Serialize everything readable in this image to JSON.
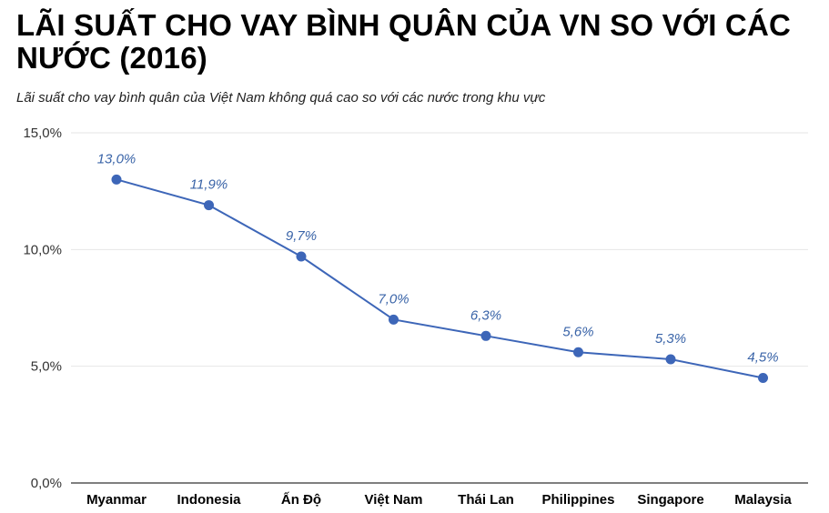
{
  "title": "LÃI SUẤT CHO VAY BÌNH QUÂN CỦA VN SO VỚI CÁC NƯỚC (2016)",
  "subtitle": "Lãi suất cho vay bình quân của Việt Nam không quá cao so với các nước trong khu vực",
  "chart_data": {
    "type": "line",
    "categories": [
      "Myanmar",
      "Indonesia",
      "Ấn Độ",
      "Việt Nam",
      "Thái Lan",
      "Philippines",
      "Singapore",
      "Malaysia"
    ],
    "values": [
      13.0,
      11.9,
      9.7,
      7.0,
      6.3,
      5.6,
      5.3,
      4.5
    ],
    "data_labels": [
      "13,0%",
      "11,9%",
      "9,7%",
      "7,0%",
      "6,3%",
      "5,6%",
      "5,3%",
      "4,5%"
    ],
    "ylim": [
      0,
      15
    ],
    "yticks": [
      0,
      5,
      10,
      15
    ],
    "ytick_labels": [
      "0,0%",
      "5,0%",
      "10,0%",
      "15,0%"
    ],
    "grid": true,
    "color": "#3d66b8"
  }
}
